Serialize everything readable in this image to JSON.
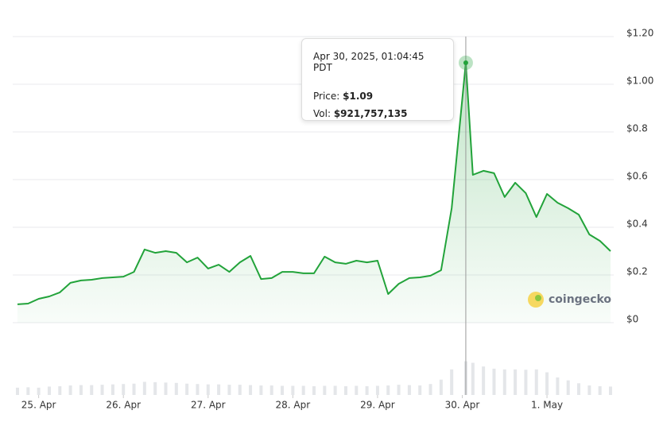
{
  "chart_data": {
    "type": "line",
    "x": [
      0,
      3,
      6,
      9,
      12,
      15,
      18,
      21,
      24,
      27,
      30,
      33,
      36,
      39,
      42,
      45,
      48,
      51,
      54,
      57,
      60,
      63,
      66,
      69,
      72,
      75,
      78,
      81,
      84,
      87,
      90,
      93,
      96,
      99,
      102,
      105,
      108,
      111,
      114,
      117,
      120,
      123,
      127,
      129,
      132,
      135,
      138,
      141,
      144,
      147,
      150,
      153,
      156,
      159,
      162,
      165,
      168
    ],
    "xlim": [
      0,
      168
    ],
    "xticks": [
      {
        "value": 6,
        "label": "25. Apr"
      },
      {
        "value": 30,
        "label": "26. Apr"
      },
      {
        "value": 54,
        "label": "27. Apr"
      },
      {
        "value": 78,
        "label": "28. Apr"
      },
      {
        "value": 102,
        "label": "29. Apr"
      },
      {
        "value": 126,
        "label": "30. Apr"
      },
      {
        "value": 150,
        "label": "1. May"
      }
    ],
    "ylim": [
      0,
      1.2
    ],
    "yticks": [
      {
        "value": 1.2,
        "label": "$1.20"
      },
      {
        "value": 1.0,
        "label": "$1.00"
      },
      {
        "value": 0.8,
        "label": "$0.8"
      },
      {
        "value": 0.6,
        "label": "$0.6"
      },
      {
        "value": 0.4,
        "label": "$0.4"
      },
      {
        "value": 0.2,
        "label": "$0.2"
      },
      {
        "value": 0,
        "label": "$0"
      }
    ],
    "y2lim": [
      0,
      1000000000
    ],
    "grid": true,
    "series": [
      {
        "color": "#22a33a",
        "values": [
          0.077,
          0.08,
          0.1,
          0.11,
          0.127,
          0.167,
          0.177,
          0.18,
          0.187,
          0.19,
          0.193,
          0.213,
          0.307,
          0.293,
          0.3,
          0.293,
          0.253,
          0.273,
          0.227,
          0.243,
          0.213,
          0.253,
          0.28,
          0.183,
          0.187,
          0.213,
          0.213,
          0.207,
          0.207,
          0.277,
          0.253,
          0.247,
          0.26,
          0.253,
          0.26,
          0.12,
          0.163,
          0.187,
          0.19,
          0.197,
          0.22,
          0.48,
          1.09,
          0.62,
          0.637,
          0.627,
          0.527,
          0.587,
          0.543,
          0.443,
          0.54,
          0.503,
          0.48,
          0.453,
          0.37,
          0.343,
          0.3
        ]
      },
      {
        "type": "bar",
        "axis": "y2",
        "color": "#e4e6e9",
        "values": [
          200000000,
          210000000,
          200000000,
          230000000,
          240000000,
          260000000,
          270000000,
          270000000,
          280000000,
          290000000,
          300000000,
          310000000,
          360000000,
          350000000,
          340000000,
          330000000,
          310000000,
          300000000,
          290000000,
          290000000,
          280000000,
          280000000,
          270000000,
          260000000,
          260000000,
          250000000,
          250000000,
          250000000,
          240000000,
          250000000,
          250000000,
          240000000,
          250000000,
          240000000,
          250000000,
          260000000,
          280000000,
          270000000,
          260000000,
          300000000,
          420000000,
          700000000,
          921757135,
          880000000,
          780000000,
          720000000,
          700000000,
          700000000,
          690000000,
          700000000,
          620000000,
          480000000,
          400000000,
          320000000,
          260000000,
          240000000,
          230000000
        ]
      }
    ],
    "tooltip": {
      "title": "Apr 30, 2025, 01:04:45 PDT",
      "rows": [
        {
          "label": "Price:",
          "value": "$1.09"
        },
        {
          "label": "Vol:",
          "value": "$921,757,135"
        }
      ]
    },
    "watermark": "coingecko"
  }
}
